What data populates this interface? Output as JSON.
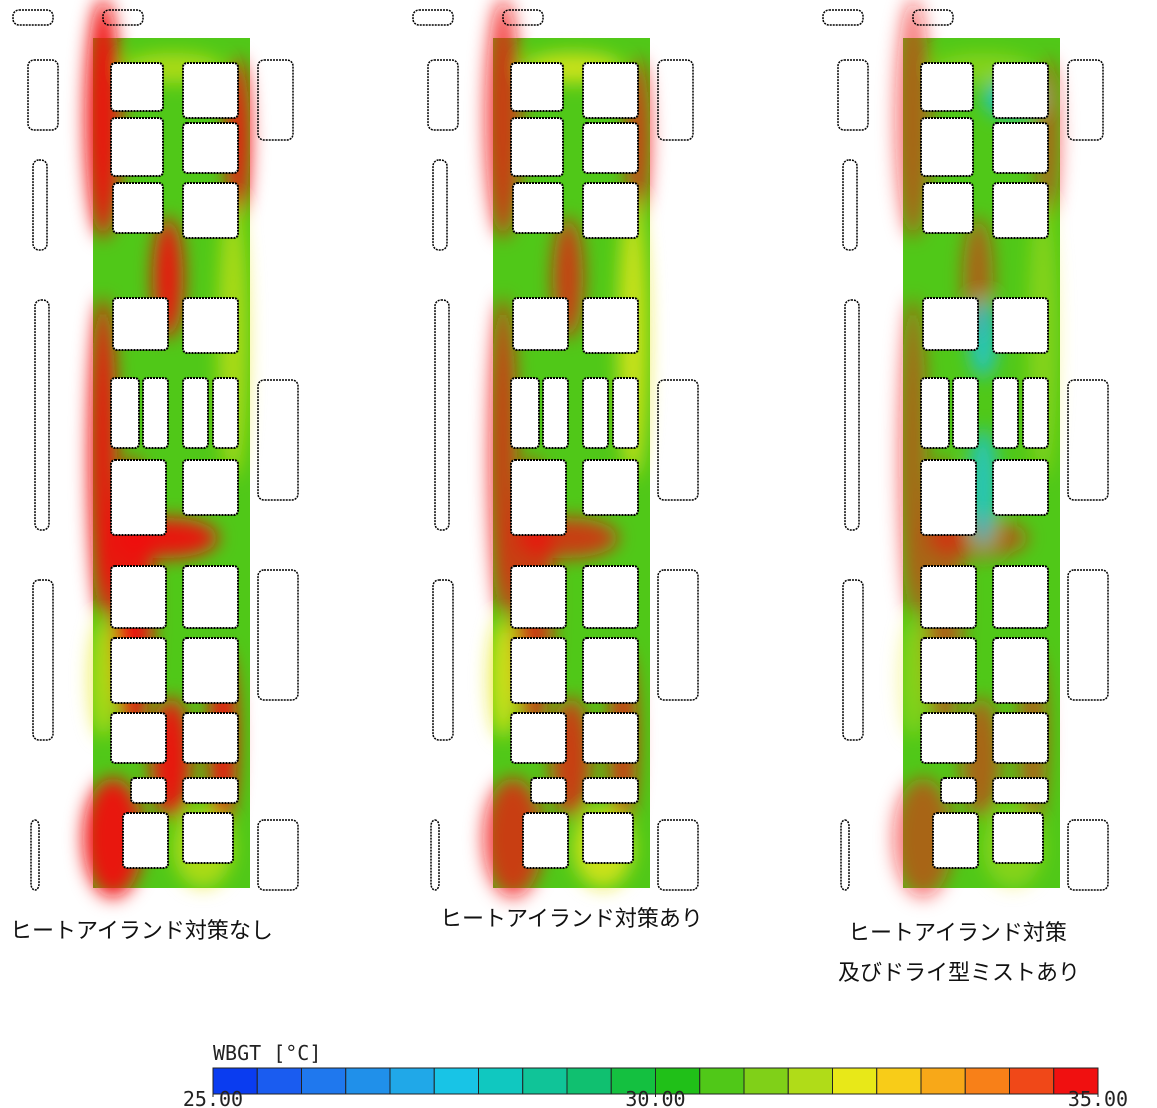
{
  "panels": [
    {
      "caption": [
        "ヒートアイランド対策なし"
      ],
      "heat": "high"
    },
    {
      "caption": [
        "ヒートアイランド対策あり"
      ],
      "heat": "mid"
    },
    {
      "caption": [
        "ヒートアイランド対策",
        "及びドライ型ミストあり"
      ],
      "heat": "low"
    }
  ],
  "colorbar": {
    "label": "WBGT [°C]",
    "lim": [
      25,
      35
    ],
    "ticks": [
      {
        "value": 25,
        "label": "25.00"
      },
      {
        "value": 30,
        "label": "30.00"
      },
      {
        "value": 35,
        "label": "35.00"
      }
    ],
    "colors": [
      "#0a3cf0",
      "#1a5cf0",
      "#1f78ee",
      "#2090ea",
      "#20a8e8",
      "#18c4e6",
      "#10c8c0",
      "#10c498",
      "#10c070",
      "#14c040",
      "#20c018",
      "#50c818",
      "#80d018",
      "#b0dc18",
      "#e8e818",
      "#f8cc18",
      "#f8a818",
      "#f88018",
      "#f04818",
      "#f01010"
    ]
  }
}
